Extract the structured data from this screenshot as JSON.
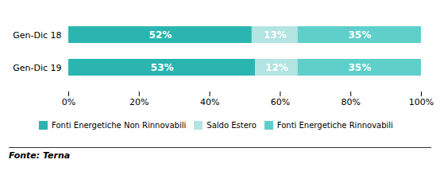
{
  "chart_data": {
    "type": "bar",
    "orientation": "horizontal",
    "stacked": true,
    "categories": [
      "Gen-Dic 19",
      "Gen-Dic 18"
    ],
    "series": [
      {
        "name": "Fonti Energetiche Non Rinnovabili",
        "color": "#2ab5b0",
        "values": [
          53,
          52
        ],
        "value_labels": [
          "53%",
          "52%"
        ]
      },
      {
        "name": "Saldo Estero",
        "color": "#b2e4e2",
        "values": [
          12,
          13
        ],
        "value_labels": [
          "12%",
          "13%"
        ]
      },
      {
        "name": "Fonti Energetiche Rinnovabili",
        "color": "#5ecfca",
        "values": [
          35,
          35
        ],
        "value_labels": [
          "35%",
          "35%"
        ]
      }
    ],
    "xlim": [
      0,
      100
    ],
    "xticks": [
      {
        "value": 0,
        "label": "0%"
      },
      {
        "value": 20,
        "label": "20%"
      },
      {
        "value": 40,
        "label": "40%"
      },
      {
        "value": 60,
        "label": "60%"
      },
      {
        "value": 80,
        "label": "80%"
      },
      {
        "value": 100,
        "label": "100%"
      }
    ],
    "data_labels": true,
    "grid": false,
    "legend": "bottom",
    "annotations": [
      "Fonte: Terna"
    ]
  }
}
